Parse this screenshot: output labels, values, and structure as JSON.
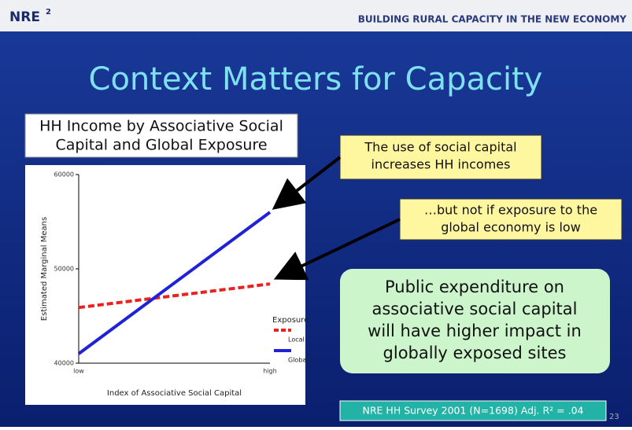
{
  "header": {
    "brand": "NRE",
    "brand_sup": "2",
    "tagline": "BUILDING RURAL CAPACITY IN THE NEW ECONOMY"
  },
  "title": "Context Matters for Capacity",
  "chart_title_lines": [
    "HH Income by Associative Social",
    "Capital and Global Exposure"
  ],
  "chart_data": {
    "type": "line",
    "categories": [
      "low",
      "high"
    ],
    "series": [
      {
        "name": "Local",
        "color": "#e8231f",
        "dashed": true,
        "values": [
          45900,
          48400
        ]
      },
      {
        "name": "Global",
        "color": "#1f22d6",
        "dashed": false,
        "values": [
          41000,
          56000
        ]
      }
    ],
    "ylim": [
      40000,
      60000
    ],
    "yticks": [
      40000,
      50000,
      60000
    ],
    "xlabel": "Index of Associative Social Capital",
    "ylabel": "Estimated Marginal Means",
    "legend_title": "Exposure",
    "grid": false
  },
  "callouts": [
    {
      "lines": [
        "The use of social capital",
        "increases HH incomes"
      ]
    },
    {
      "lines": [
        "…but not if exposure to the",
        "global economy is low"
      ]
    }
  ],
  "conclusion_lines": [
    "Public expenditure on",
    "associative social capital",
    "will have higher impact in",
    "globally exposed sites"
  ],
  "footer": {
    "source": "NRE HH Survey 2001 (N=1698) Adj. R² = .04",
    "page": "23"
  }
}
